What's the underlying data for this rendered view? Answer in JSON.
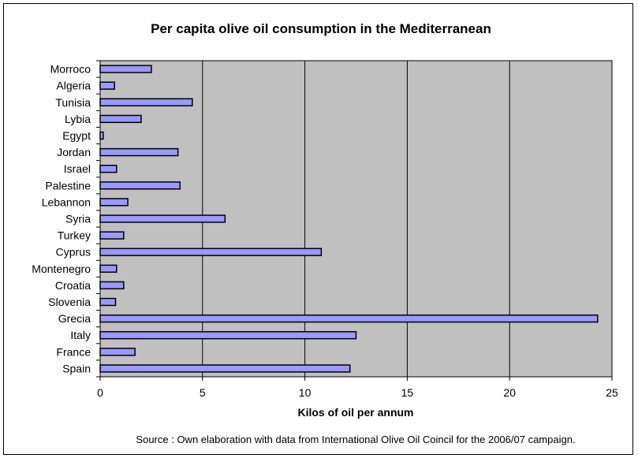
{
  "chart_data": {
    "type": "bar",
    "orientation": "horizontal",
    "title": "Per capita olive oil consumption in the Mediterranean",
    "xlabel": "Kilos of oil per annum",
    "ylabel": "",
    "xlim": [
      0,
      25
    ],
    "xticks": [
      0,
      5,
      10,
      15,
      20,
      25
    ],
    "grid": "vertical",
    "legend": "none",
    "categories": [
      "Morroco",
      "Algeria",
      "Tunisia",
      "Lybia",
      "Egypt",
      "Jordan",
      "Israel",
      "Palestine",
      "Lebannon",
      "Syria",
      "Turkey",
      "Cyprus",
      "Montenegro",
      "Croatia",
      "Slovenia",
      "Grecia",
      "Italy",
      "France",
      "Spain"
    ],
    "values": [
      2.5,
      0.7,
      4.5,
      2.0,
      0.15,
      3.8,
      0.8,
      3.9,
      1.35,
      6.1,
      1.15,
      10.8,
      0.8,
      1.15,
      0.75,
      24.3,
      12.5,
      1.7,
      12.2
    ],
    "source": "Source : Own elaboration with data from International Olive Oil Coincil for the 2006/07 campaign.",
    "colors": {
      "plot_bg": "#c0c0c0",
      "bar": "#9999ff",
      "bar_stroke": "#000000",
      "grid": "#000000"
    }
  }
}
